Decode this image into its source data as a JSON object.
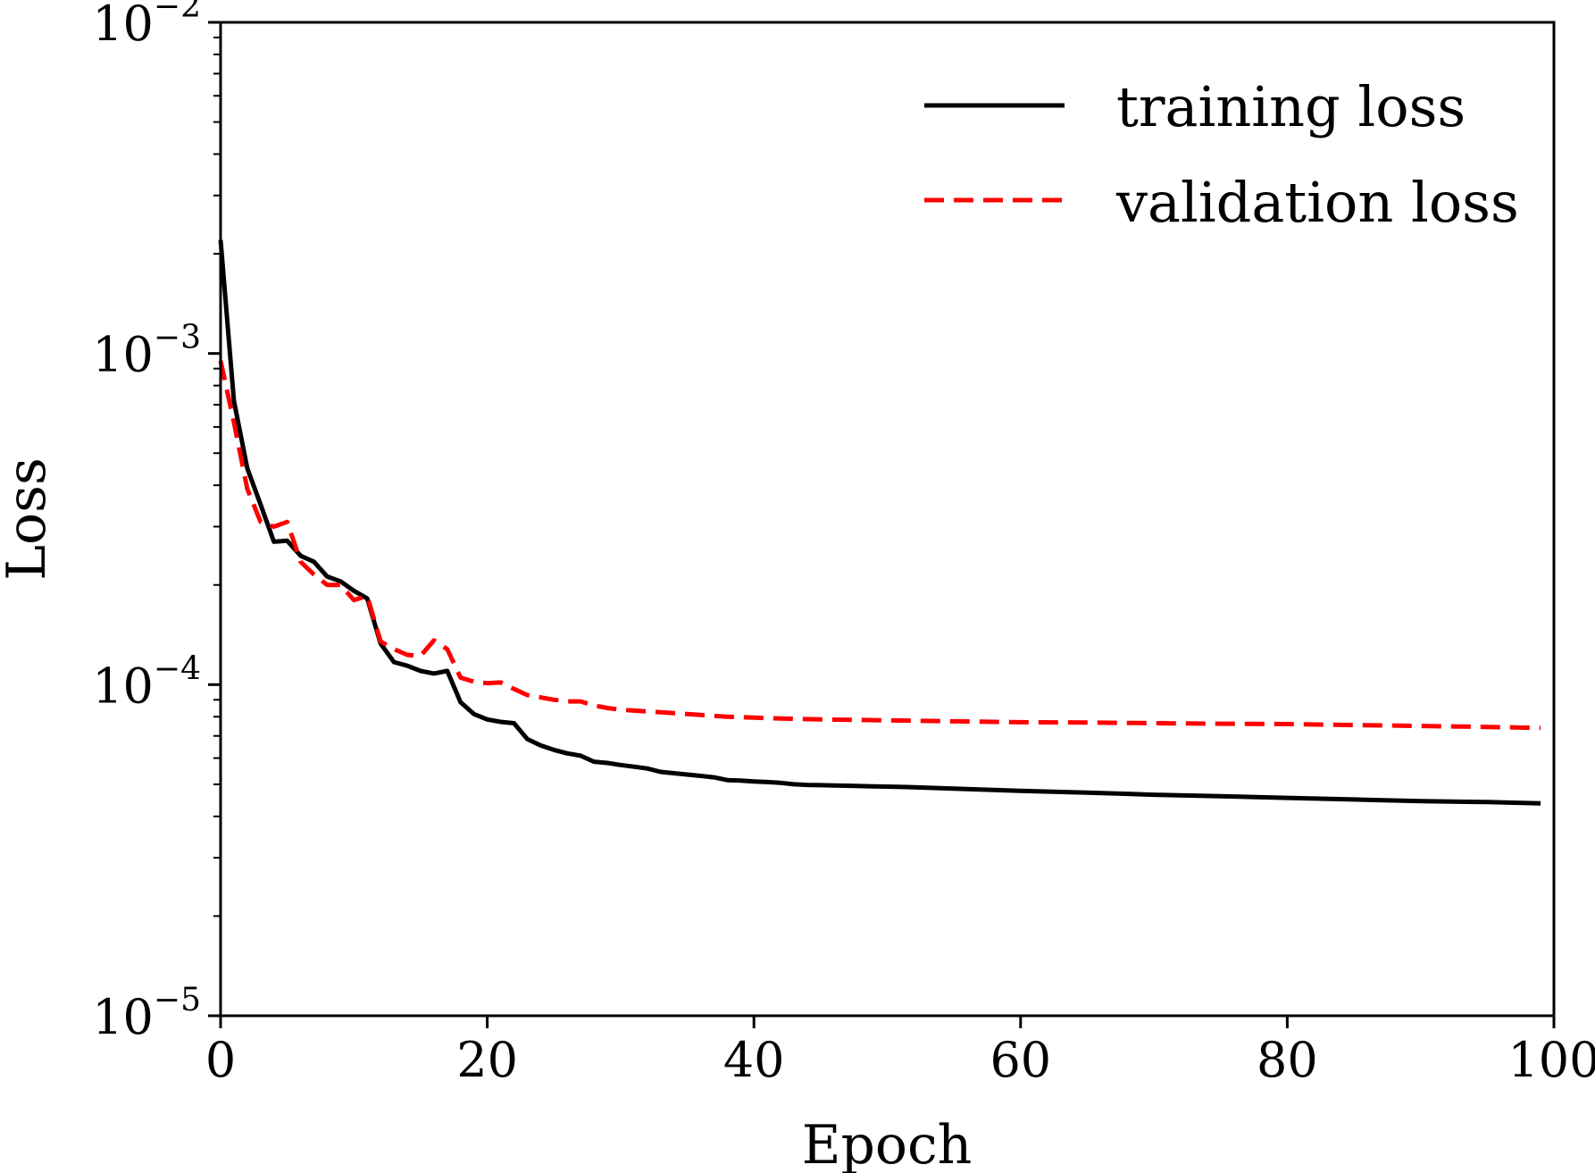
{
  "chart_data": {
    "type": "line",
    "xlabel": "Epoch",
    "ylabel": "Loss",
    "xlim": [
      0,
      100
    ],
    "ylim": [
      1e-05,
      0.01
    ],
    "y_scale": "log",
    "grid": false,
    "legend_position": "top-right",
    "x_ticks": [
      {
        "value": 0,
        "label": "0"
      },
      {
        "value": 20,
        "label": "20"
      },
      {
        "value": 40,
        "label": "40"
      },
      {
        "value": 60,
        "label": "60"
      },
      {
        "value": 80,
        "label": "80"
      },
      {
        "value": 100,
        "label": "100"
      }
    ],
    "y_ticks": [
      {
        "value": 0.01,
        "base": "10",
        "exp": "−2"
      },
      {
        "value": 0.001,
        "base": "10",
        "exp": "−3"
      },
      {
        "value": 0.0001,
        "base": "10",
        "exp": "−4"
      },
      {
        "value": 1e-05,
        "base": "10",
        "exp": "−5"
      }
    ],
    "series": [
      {
        "name": "training loss",
        "color": "#000000",
        "style": "solid",
        "x": [
          0,
          1,
          2,
          3,
          4,
          5,
          6,
          7,
          8,
          9,
          10,
          11,
          12,
          13,
          14,
          15,
          16,
          17,
          18,
          19,
          20,
          21,
          22,
          23,
          24,
          25,
          26,
          27,
          28,
          29,
          30,
          31,
          32,
          33,
          34,
          35,
          36,
          37,
          38,
          39,
          40,
          41,
          42,
          43,
          44,
          45,
          46,
          47,
          48,
          49,
          50,
          52,
          55,
          60,
          65,
          70,
          75,
          80,
          85,
          90,
          95,
          99
        ],
        "y": [
          0.0022,
          0.00072,
          0.00045,
          0.00035,
          0.00027,
          0.000272,
          0.000245,
          0.000235,
          0.000212,
          0.000205,
          0.000192,
          0.000182,
          0.000133,
          0.000117,
          0.000114,
          0.00011,
          0.000108,
          0.00011,
          8.85e-05,
          8.15e-05,
          7.85e-05,
          7.72e-05,
          7.65e-05,
          6.85e-05,
          6.55e-05,
          6.35e-05,
          6.2e-05,
          6.1e-05,
          5.85e-05,
          5.8e-05,
          5.72e-05,
          5.65e-05,
          5.58e-05,
          5.45e-05,
          5.4e-05,
          5.35e-05,
          5.3e-05,
          5.25e-05,
          5.15e-05,
          5.13e-05,
          5.1e-05,
          5.08e-05,
          5.05e-05,
          5e-05,
          4.98e-05,
          4.97e-05,
          4.96e-05,
          4.95e-05,
          4.94e-05,
          4.93e-05,
          4.92e-05,
          4.9e-05,
          4.85e-05,
          4.78e-05,
          4.72e-05,
          4.65e-05,
          4.6e-05,
          4.55e-05,
          4.5e-05,
          4.45e-05,
          4.42e-05,
          4.38e-05
        ]
      },
      {
        "name": "validation loss",
        "color": "#ff0000",
        "style": "dashed",
        "x": [
          0,
          1,
          2,
          3,
          4,
          5,
          6,
          7,
          8,
          9,
          10,
          11,
          12,
          13,
          14,
          15,
          16,
          17,
          18,
          19,
          20,
          21,
          22,
          23,
          24,
          25,
          26,
          27,
          28,
          29,
          30,
          31,
          32,
          33,
          34,
          35,
          36,
          37,
          38,
          39,
          40,
          42,
          45,
          50,
          55,
          60,
          65,
          70,
          75,
          80,
          85,
          90,
          95,
          99
        ],
        "y": [
          0.00095,
          0.00062,
          0.00039,
          0.00031,
          0.0003,
          0.00031,
          0.000235,
          0.000215,
          0.0002,
          0.0002,
          0.00018,
          0.000185,
          0.000135,
          0.000128,
          0.000123,
          0.000122,
          0.000136,
          0.000128,
          0.000105,
          0.000102,
          0.000101,
          0.0001015,
          9.7e-05,
          9.3e-05,
          9.15e-05,
          9e-05,
          8.9e-05,
          8.9e-05,
          8.65e-05,
          8.5e-05,
          8.4e-05,
          8.35e-05,
          8.3e-05,
          8.25e-05,
          8.2e-05,
          8.15e-05,
          8.1e-05,
          8.05e-05,
          8e-05,
          7.98e-05,
          7.95e-05,
          7.9e-05,
          7.85e-05,
          7.8e-05,
          7.75e-05,
          7.7e-05,
          7.68e-05,
          7.65e-05,
          7.62e-05,
          7.6e-05,
          7.55e-05,
          7.5e-05,
          7.45e-05,
          7.4e-05
        ]
      }
    ]
  }
}
